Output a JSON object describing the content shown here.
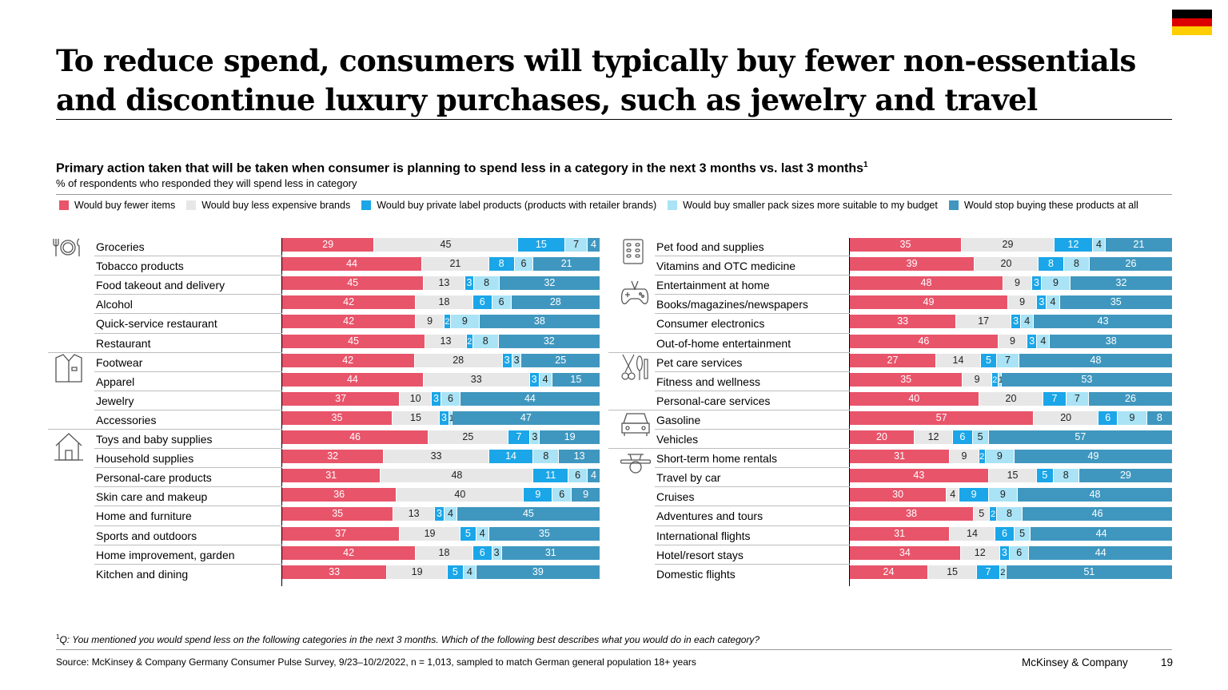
{
  "title": "To reduce spend, consumers will typically buy fewer non-essentials and discontinue luxury purchases, such as jewelry and travel",
  "subtitle": "Primary action taken that will be taken when consumer is planning to spend less in a category in the next 3 months vs. last 3 months",
  "subtitle_sup": "1",
  "unit_label": "% of respondents who responded they will spend less in category",
  "colors": {
    "fewer": "#e8546a",
    "cheaper": "#e7e7e7",
    "private": "#1aa6e8",
    "smaller": "#a9e3f5",
    "stop": "#3f97bf",
    "flag_black": "#000000",
    "flag_red": "#dd0000",
    "flag_gold": "#ffce00"
  },
  "chart_data": {
    "type": "bar",
    "stacked": true,
    "orientation": "horizontal",
    "xlim": [
      0,
      100
    ],
    "legend_position": "top",
    "series_names": [
      "Would buy fewer items",
      "Would buy less expensive brands",
      "Would buy private label products (products with retailer brands)",
      "Would buy smaller pack sizes more suitable to my budget",
      "Would stop buying these products at all"
    ],
    "panels": [
      {
        "rows": [
          {
            "label": "Groceries",
            "values": [
              29,
              45,
              15,
              7,
              4
            ]
          },
          {
            "label": "Tobacco products",
            "values": [
              44,
              21,
              8,
              6,
              21
            ]
          },
          {
            "label": "Food takeout and delivery",
            "values": [
              45,
              13,
              3,
              8,
              32
            ]
          },
          {
            "label": "Alcohol",
            "values": [
              42,
              18,
              6,
              6,
              28
            ]
          },
          {
            "label": "Quick-service restaurant",
            "values": [
              42,
              9,
              2,
              9,
              38
            ]
          },
          {
            "label": "Restaurant",
            "values": [
              45,
              13,
              2,
              8,
              32
            ]
          },
          {
            "label": "Footwear",
            "values": [
              42,
              28,
              3,
              3,
              25
            ]
          },
          {
            "label": "Apparel",
            "values": [
              44,
              33,
              3,
              4,
              15
            ]
          },
          {
            "label": "Jewelry",
            "values": [
              37,
              10,
              3,
              6,
              44
            ]
          },
          {
            "label": "Accessories",
            "values": [
              35,
              15,
              3,
              1,
              47
            ]
          },
          {
            "label": "Toys and baby supplies",
            "values": [
              46,
              25,
              7,
              3,
              19
            ]
          },
          {
            "label": "Household supplies",
            "values": [
              32,
              33,
              14,
              8,
              13
            ]
          },
          {
            "label": "Personal-care products",
            "values": [
              31,
              48,
              11,
              6,
              4
            ]
          },
          {
            "label": "Skin care and makeup",
            "values": [
              36,
              40,
              9,
              6,
              9
            ]
          },
          {
            "label": "Home and furniture",
            "values": [
              35,
              13,
              3,
              4,
              45
            ]
          },
          {
            "label": "Sports and outdoors",
            "values": [
              37,
              19,
              5,
              4,
              35
            ]
          },
          {
            "label": "Home improvement, garden",
            "values": [
              42,
              18,
              6,
              3,
              31
            ]
          },
          {
            "label": "Kitchen and dining",
            "values": [
              33,
              19,
              5,
              4,
              39
            ]
          }
        ]
      },
      {
        "rows": [
          {
            "label": "Pet food and supplies",
            "values": [
              35,
              29,
              12,
              4,
              21
            ]
          },
          {
            "label": "Vitamins and OTC medicine",
            "values": [
              39,
              20,
              8,
              8,
              26
            ]
          },
          {
            "label": "Entertainment at home",
            "values": [
              48,
              9,
              3,
              9,
              32
            ]
          },
          {
            "label": "Books/magazines/newspapers",
            "values": [
              49,
              9,
              3,
              4,
              35
            ]
          },
          {
            "label": "Consumer electronics",
            "values": [
              33,
              17,
              3,
              4,
              43
            ]
          },
          {
            "label": "Out-of-home entertainment",
            "values": [
              46,
              9,
              3,
              4,
              38
            ]
          },
          {
            "label": "Pet care services",
            "values": [
              27,
              14,
              5,
              7,
              48
            ]
          },
          {
            "label": "Fitness and wellness",
            "values": [
              35,
              9,
              2,
              1,
              53
            ]
          },
          {
            "label": "Personal-care services",
            "values": [
              40,
              20,
              7,
              7,
              26
            ]
          },
          {
            "label": "Gasoline",
            "values": [
              57,
              20,
              6,
              9,
              8
            ]
          },
          {
            "label": "Vehicles",
            "values": [
              20,
              12,
              6,
              5,
              57
            ]
          },
          {
            "label": "Short-term home rentals",
            "values": [
              31,
              9,
              2,
              9,
              49
            ]
          },
          {
            "label": "Travel by car",
            "values": [
              43,
              15,
              5,
              8,
              29
            ]
          },
          {
            "label": "Cruises",
            "values": [
              30,
              4,
              9,
              9,
              48
            ]
          },
          {
            "label": "Adventures and tours",
            "values": [
              38,
              5,
              2,
              8,
              46
            ]
          },
          {
            "label": "International flights",
            "values": [
              31,
              14,
              6,
              5,
              44
            ]
          },
          {
            "label": "Hotel/resort stays",
            "values": [
              34,
              12,
              3,
              6,
              44
            ]
          },
          {
            "label": "Domestic flights",
            "values": [
              24,
              15,
              7,
              2,
              51
            ]
          }
        ]
      }
    ]
  },
  "icons": [
    "cutlery-plate-icon",
    "shirt-icon",
    "house-icon",
    "pills-icon",
    "gamepad-icon",
    "scissors-mirror-icon",
    "car-icon",
    "airplane-icon"
  ],
  "footnote_sup": "1",
  "footnote": "Q: You mentioned you would spend less on the following categories in the next 3 months. Which of the following best describes what you would do in each category?",
  "source": "Source: McKinsey & Company Germany Consumer Pulse Survey, 9/23–10/2/2022, n = 1,013, sampled to match German general population 18+ years",
  "brand": "McKinsey & Company",
  "page_number": "19"
}
